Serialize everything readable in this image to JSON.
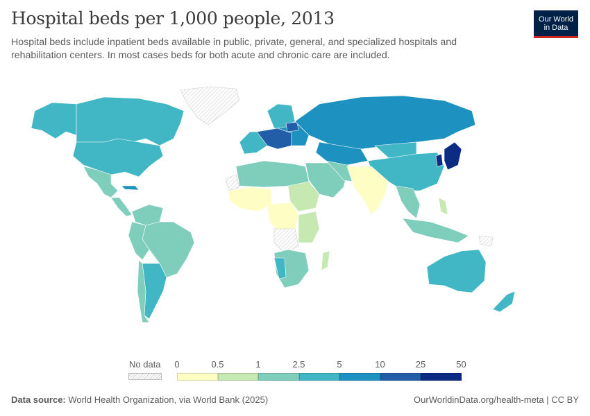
{
  "title": "Hospital beds per 1,000 people, 2013",
  "subtitle": "Hospital beds include inpatient beds available in public, private, general, and specialized hospitals and rehabilitation centers. In most cases beds for both acute and chronic care are included.",
  "logo": {
    "line1": "Our World",
    "line2": "in Data"
  },
  "legend": {
    "no_data_label": "No data",
    "ticks": [
      "0",
      "0.5",
      "1",
      "2.5",
      "5",
      "10",
      "25",
      "50"
    ],
    "bins": [
      {
        "from": "0",
        "to": "0.5",
        "color": "#fefec4"
      },
      {
        "from": "0.5",
        "to": "1",
        "color": "#c6e8b1"
      },
      {
        "from": "1",
        "to": "2.5",
        "color": "#7fcdbb"
      },
      {
        "from": "2.5",
        "to": "5",
        "color": "#41b6c4"
      },
      {
        "from": "5",
        "to": "10",
        "color": "#1d91c0"
      },
      {
        "from": "10",
        "to": "25",
        "color": "#225ea8"
      },
      {
        "from": "25",
        "to": "50",
        "color": "#0c2c84"
      }
    ]
  },
  "colors": {
    "nodata_hatch": "#cfcfcf",
    "brand": "#002147",
    "brand_accent": "#ce261e"
  },
  "footer": {
    "source_label": "Data source:",
    "source_text": "World Health Organization, via World Bank (2025)",
    "url": "OurWorldinData.org/health-meta | CC BY"
  }
}
